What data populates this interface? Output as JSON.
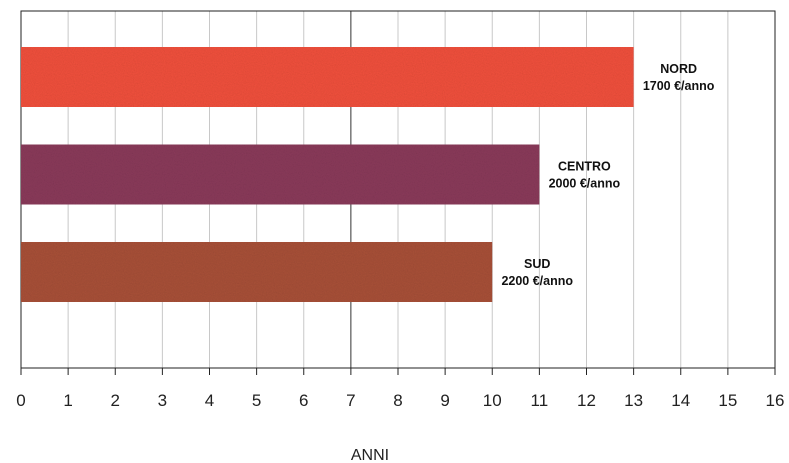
{
  "chart_data": {
    "type": "bar",
    "orientation": "horizontal",
    "categories": [
      "NORD",
      "CENTRO",
      "SUD"
    ],
    "values": [
      13,
      11,
      10
    ],
    "annotations": [
      "1700 €/anno",
      "2000 €/anno",
      "2200 €/anno"
    ],
    "bar_colors": [
      "#f0503c",
      "#8a3a5a",
      "#a85038"
    ],
    "xlabel": "ANNI",
    "xlim": [
      0,
      16
    ],
    "xticks": [
      "0",
      "1",
      "2",
      "3",
      "4",
      "5",
      "6",
      "7",
      "8",
      "9",
      "10",
      "11",
      "12",
      "13",
      "14",
      "15",
      "16"
    ],
    "grid": true,
    "emphasized_gridline": 7
  }
}
